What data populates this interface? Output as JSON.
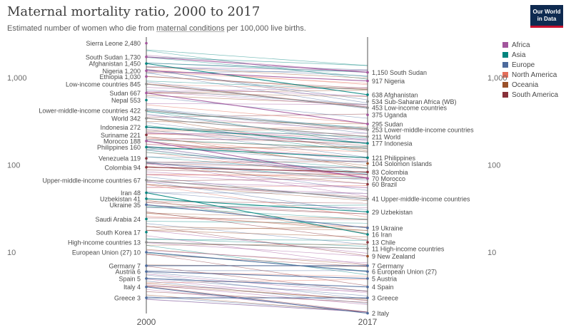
{
  "title": "Maternal mortality ratio, 2000 to 2017",
  "subtitle": {
    "before": "Estimated number of women who die from ",
    "link": "maternal conditions",
    "after": " per 100,000 live births."
  },
  "logo": {
    "line1": "Our World",
    "line2": "in Data"
  },
  "legend": [
    {
      "name": "Africa",
      "color": "#a2559c"
    },
    {
      "name": "Asia",
      "color": "#00847e"
    },
    {
      "name": "Europe",
      "color": "#4c6a9c"
    },
    {
      "name": "North America",
      "color": "#e56e5a"
    },
    {
      "name": "Oceania",
      "color": "#9a5129"
    },
    {
      "name": "South America",
      "color": "#883039"
    }
  ],
  "chart_data": {
    "type": "line",
    "subtype": "slope",
    "x": [
      "2000",
      "2017"
    ],
    "y_scale": "log",
    "y_ticks": [
      "10",
      "100",
      "1,000"
    ],
    "labeled_series": [
      {
        "name": "Sierra Leone",
        "values": [
          2480,
          null
        ],
        "labels": [
          "2,480",
          ""
        ],
        "region": "Africa"
      },
      {
        "name": "South Sudan",
        "values": [
          1730,
          1150
        ],
        "labels": [
          "1,730",
          "1,150"
        ],
        "region": "Africa"
      },
      {
        "name": "Afghanistan",
        "values": [
          1450,
          638
        ],
        "labels": [
          "1,450",
          "638"
        ],
        "region": "Asia"
      },
      {
        "name": "Nigeria",
        "values": [
          1200,
          917
        ],
        "labels": [
          "1,200",
          "917"
        ],
        "region": "Africa"
      },
      {
        "name": "Ethiopia",
        "values": [
          1030,
          null
        ],
        "labels": [
          "1,030",
          ""
        ],
        "region": "Africa"
      },
      {
        "name": "Low-income countries",
        "values": [
          845,
          453
        ],
        "labels": [
          "845",
          "453"
        ],
        "region": ""
      },
      {
        "name": "Sudan",
        "values": [
          667,
          295
        ],
        "labels": [
          "667",
          "295"
        ],
        "region": "Africa"
      },
      {
        "name": "Nepal",
        "values": [
          553,
          null
        ],
        "labels": [
          "553",
          ""
        ],
        "region": "Asia"
      },
      {
        "name": "Lower-middle-income countries",
        "values": [
          422,
          253
        ],
        "labels": [
          "422",
          "253"
        ],
        "region": ""
      },
      {
        "name": "World",
        "values": [
          342,
          211
        ],
        "labels": [
          "342",
          "211"
        ],
        "region": ""
      },
      {
        "name": "Indonesia",
        "values": [
          272,
          177
        ],
        "labels": [
          "272",
          "177"
        ],
        "region": "Asia"
      },
      {
        "name": "Suriname",
        "values": [
          221,
          null
        ],
        "labels": [
          "221",
          ""
        ],
        "region": "South America"
      },
      {
        "name": "Morocco",
        "values": [
          188,
          70
        ],
        "labels": [
          "188",
          "70"
        ],
        "region": "Africa"
      },
      {
        "name": "Philippines",
        "values": [
          160,
          121
        ],
        "labels": [
          "160",
          "121"
        ],
        "region": "Asia"
      },
      {
        "name": "Venezuela",
        "values": [
          119,
          null
        ],
        "labels": [
          "119",
          ""
        ],
        "region": "South America"
      },
      {
        "name": "Colombia",
        "values": [
          94,
          83
        ],
        "labels": [
          "94",
          "83"
        ],
        "region": "South America"
      },
      {
        "name": "Upper-middle-income countries",
        "values": [
          67,
          41
        ],
        "labels": [
          "67",
          "41"
        ],
        "region": ""
      },
      {
        "name": "Iran",
        "values": [
          48,
          16
        ],
        "labels": [
          "48",
          "16"
        ],
        "region": "Asia"
      },
      {
        "name": "Uzbekistan",
        "values": [
          41,
          29
        ],
        "labels": [
          "41",
          "29"
        ],
        "region": "Asia"
      },
      {
        "name": "Ukraine",
        "values": [
          35,
          19
        ],
        "labels": [
          "35",
          "19"
        ],
        "region": "Europe"
      },
      {
        "name": "Saudi Arabia",
        "values": [
          24,
          null
        ],
        "labels": [
          "24",
          ""
        ],
        "region": "Asia"
      },
      {
        "name": "South Korea",
        "values": [
          17,
          null
        ],
        "labels": [
          "17",
          ""
        ],
        "region": "Asia"
      },
      {
        "name": "High-income countries",
        "values": [
          13,
          11
        ],
        "labels": [
          "13",
          "11"
        ],
        "region": ""
      },
      {
        "name": "European Union (27)",
        "values": [
          10,
          6
        ],
        "labels": [
          "10",
          "6"
        ],
        "region": "Europe"
      },
      {
        "name": "Germany",
        "values": [
          7,
          7
        ],
        "labels": [
          "7",
          "7"
        ],
        "region": "Europe"
      },
      {
        "name": "Austria",
        "values": [
          6,
          5
        ],
        "labels": [
          "6",
          "5"
        ],
        "region": "Europe"
      },
      {
        "name": "Spain",
        "values": [
          5,
          4
        ],
        "labels": [
          "5",
          "4"
        ],
        "region": "Europe"
      },
      {
        "name": "Italy",
        "values": [
          4,
          2
        ],
        "labels": [
          "4",
          "2"
        ],
        "region": "Europe"
      },
      {
        "name": "Greece",
        "values": [
          3,
          3
        ],
        "labels": [
          "3",
          "3"
        ],
        "region": "Europe"
      },
      {
        "name": "Solomon Islands",
        "values": [
          null,
          104
        ],
        "labels": [
          "",
          "104"
        ],
        "region": "Oceania"
      },
      {
        "name": "Sub-Saharan Africa (WB)",
        "values": [
          null,
          534
        ],
        "labels": [
          "",
          "534"
        ],
        "region": ""
      },
      {
        "name": "Uganda",
        "values": [
          null,
          375
        ],
        "labels": [
          "",
          "375"
        ],
        "region": "Africa"
      },
      {
        "name": "Brazil",
        "values": [
          null,
          60
        ],
        "labels": [
          "",
          "60"
        ],
        "region": "South America"
      },
      {
        "name": "Chile",
        "values": [
          null,
          13
        ],
        "labels": [
          "",
          "13"
        ],
        "region": "South America"
      },
      {
        "name": "New Zealand",
        "values": [
          null,
          9
        ],
        "labels": [
          "",
          "9"
        ],
        "region": "Oceania"
      }
    ]
  }
}
